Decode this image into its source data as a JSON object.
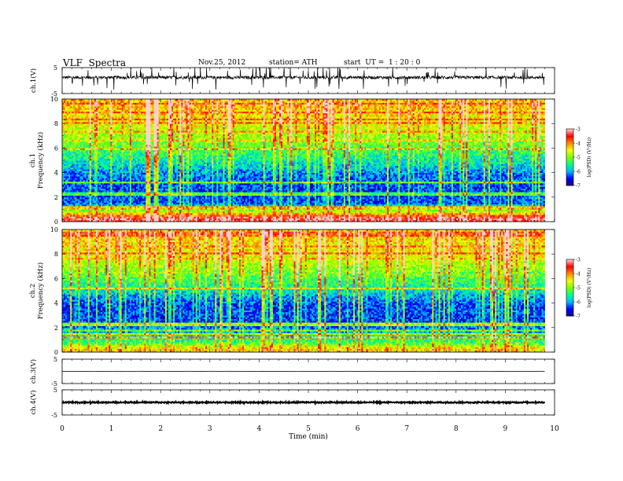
{
  "header": {
    "title": "VLF  Spectra",
    "date": "Nov.25, 2012",
    "station": "station= ATH",
    "start": "start  UT =  1 : 20 : 0"
  },
  "colors": {
    "colormap": [
      "#1a0a7a",
      "#0000ff",
      "#00b4ff",
      "#00ff90",
      "#7cff00",
      "#f0ff00",
      "#ff8c00",
      "#ff0000",
      "#ffd0d0"
    ],
    "trace": "#000000",
    "axis": "#000000"
  },
  "chart_data": [
    {
      "type": "line",
      "panel": "ch1-waveform",
      "ylabel": "ch.1(V)",
      "ylim": [
        -5,
        5
      ],
      "y_ticks": [
        "5",
        "-5"
      ],
      "x_range_min": [
        0,
        9.8
      ],
      "baseline_v": 1.2,
      "noise_amplitude_v": 0.6,
      "spikes": "frequent, up to +/-5 V"
    },
    {
      "type": "heatmap",
      "panel": "ch1-spectrogram",
      "ylabel": [
        "ch.1",
        "Frequency  (kHz)"
      ],
      "ylim": [
        0,
        10
      ],
      "y_ticks": [
        "0",
        "2",
        "4",
        "6",
        "8",
        "10"
      ],
      "x_range_min": [
        0,
        9.8
      ],
      "colorbar": {
        "label": "log(PSD) (V²/Hz)",
        "range": [
          -7,
          -3
        ],
        "ticks": [
          "-3",
          "-4",
          "-5",
          "-6",
          "-7"
        ]
      },
      "level_profile_by_freq_khz": [
        {
          "freq": 0.3,
          "logpsd": -3.3
        },
        {
          "freq": 0.8,
          "logpsd": -4.6
        },
        {
          "freq": 1.5,
          "logpsd": -6.3
        },
        {
          "freq": 2.5,
          "logpsd": -6.4
        },
        {
          "freq": 4.0,
          "logpsd": -6.1
        },
        {
          "freq": 5.0,
          "logpsd": -5.6
        },
        {
          "freq": 6.5,
          "logpsd": -5.0
        },
        {
          "freq": 8.0,
          "logpsd": -4.5
        },
        {
          "freq": 9.5,
          "logpsd": -4.2
        }
      ],
      "note": "broadband vertical sferic impulses throughout"
    },
    {
      "type": "heatmap",
      "panel": "ch2-spectrogram",
      "ylabel": [
        "ch.2",
        "Frequency  (kHz)"
      ],
      "ylim": [
        0,
        10
      ],
      "y_ticks": [
        "0",
        "2",
        "4",
        "6",
        "8",
        "10"
      ],
      "x_range_min": [
        0,
        9.8
      ],
      "colorbar": {
        "label": "log(PSD) (V²/Hz)",
        "range": [
          -7,
          -3
        ],
        "ticks": [
          "-3",
          "-4",
          "-5",
          "-6",
          "-7"
        ]
      },
      "level_profile_by_freq_khz": [
        {
          "freq": 0.3,
          "logpsd": -4.4
        },
        {
          "freq": 0.8,
          "logpsd": -5.3
        },
        {
          "freq": 1.5,
          "logpsd": -5.9
        },
        {
          "freq": 2.5,
          "logpsd": -6.4
        },
        {
          "freq": 4.0,
          "logpsd": -6.3
        },
        {
          "freq": 5.0,
          "logpsd": -5.7
        },
        {
          "freq": 6.5,
          "logpsd": -5.0
        },
        {
          "freq": 8.0,
          "logpsd": -4.5
        },
        {
          "freq": 9.5,
          "logpsd": -4.3
        }
      ],
      "note": "broadband vertical sferic impulses throughout"
    },
    {
      "type": "line",
      "panel": "ch3-waveform",
      "ylabel": "ch.3(V)",
      "ylim": [
        -5,
        5
      ],
      "y_ticks": [
        "5",
        "-5"
      ],
      "x_range_min": [
        0,
        9.8
      ],
      "baseline_v": 0,
      "noise_amplitude_v": 0.05
    },
    {
      "type": "line",
      "panel": "ch4-waveform",
      "ylabel": "ch.4(V)",
      "ylim": [
        -5,
        5
      ],
      "y_ticks": [
        "5",
        "-5"
      ],
      "x_range_min": [
        0,
        9.8
      ],
      "baseline_v": 0,
      "noise_amplitude_v": 0.3
    }
  ],
  "x_axis": {
    "label": "Time  (min)",
    "range": [
      0,
      10
    ],
    "ticks": [
      "0",
      "1",
      "2",
      "3",
      "4",
      "5",
      "6",
      "7",
      "8",
      "9",
      "10"
    ]
  }
}
